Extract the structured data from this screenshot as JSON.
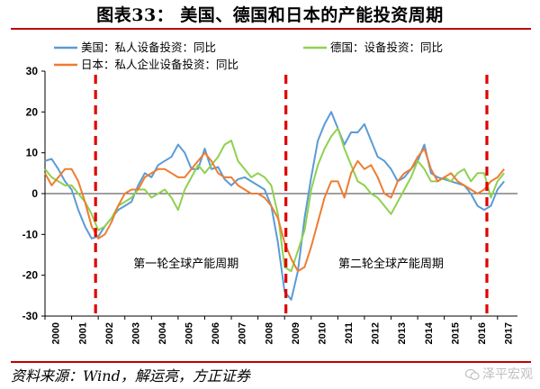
{
  "title": "图表33：  美国、德国和日本的产能投资周期",
  "source": "资料来源：Wind，解运亮，方正证券",
  "watermark": "泽平宏观",
  "colors": {
    "us": "#5b9bd5",
    "germany": "#8fd14f",
    "japan": "#ed7d31",
    "cycle_marker": "#e00000",
    "accent": "#c00000"
  },
  "chart_data": {
    "type": "line",
    "title": "",
    "xlabel": "",
    "ylabel": "",
    "ylim": [
      -30,
      30
    ],
    "yticks": [
      30,
      20,
      10,
      0,
      -10,
      -20,
      -30
    ],
    "xlim": [
      2000,
      2017.75
    ],
    "xticks": [
      "2000",
      "2001",
      "2002",
      "2003",
      "2004",
      "2005",
      "2006",
      "2007",
      "2008",
      "2009",
      "2010",
      "2011",
      "2012",
      "2013",
      "2014",
      "2015",
      "2016",
      "2017"
    ],
    "legend_position": "top",
    "grid": false,
    "series": [
      {
        "name": "美国：私人设备投资：同比",
        "color": "#5b9bd5",
        "points": [
          [
            2000.0,
            8
          ],
          [
            2000.25,
            8.5
          ],
          [
            2000.5,
            6
          ],
          [
            2000.75,
            3
          ],
          [
            2001.0,
            1
          ],
          [
            2001.25,
            -4
          ],
          [
            2001.5,
            -8
          ],
          [
            2001.75,
            -11
          ],
          [
            2002.0,
            -10.5
          ],
          [
            2002.25,
            -8
          ],
          [
            2002.5,
            -6
          ],
          [
            2002.75,
            -4
          ],
          [
            2003.0,
            -3
          ],
          [
            2003.25,
            -2
          ],
          [
            2003.5,
            2
          ],
          [
            2003.75,
            5
          ],
          [
            2004.0,
            4
          ],
          [
            2004.25,
            7
          ],
          [
            2004.5,
            8
          ],
          [
            2004.75,
            9
          ],
          [
            2005.0,
            12
          ],
          [
            2005.25,
            10
          ],
          [
            2005.5,
            6
          ],
          [
            2005.75,
            6
          ],
          [
            2006.0,
            11
          ],
          [
            2006.25,
            6
          ],
          [
            2006.5,
            6.5
          ],
          [
            2006.75,
            3.5
          ],
          [
            2007.0,
            2
          ],
          [
            2007.25,
            3.5
          ],
          [
            2007.5,
            4
          ],
          [
            2007.75,
            3
          ],
          [
            2008.0,
            2
          ],
          [
            2008.25,
            1
          ],
          [
            2008.5,
            -3
          ],
          [
            2008.75,
            -12
          ],
          [
            2009.0,
            -24
          ],
          [
            2009.25,
            -26
          ],
          [
            2009.5,
            -19
          ],
          [
            2009.75,
            -6
          ],
          [
            2010.0,
            4
          ],
          [
            2010.25,
            13
          ],
          [
            2010.5,
            17
          ],
          [
            2010.75,
            20
          ],
          [
            2011.0,
            16
          ],
          [
            2011.25,
            12
          ],
          [
            2011.5,
            15
          ],
          [
            2011.75,
            15
          ],
          [
            2012.0,
            17
          ],
          [
            2012.25,
            13
          ],
          [
            2012.5,
            9
          ],
          [
            2012.75,
            8
          ],
          [
            2013.0,
            6
          ],
          [
            2013.25,
            3
          ],
          [
            2013.5,
            4
          ],
          [
            2013.75,
            6
          ],
          [
            2014.0,
            8
          ],
          [
            2014.25,
            12
          ],
          [
            2014.5,
            5
          ],
          [
            2014.75,
            4
          ],
          [
            2015.0,
            3.5
          ],
          [
            2015.25,
            3
          ],
          [
            2015.5,
            2.5
          ],
          [
            2015.75,
            2
          ],
          [
            2016.0,
            0
          ],
          [
            2016.25,
            -3
          ],
          [
            2016.5,
            -4
          ],
          [
            2016.75,
            -3
          ],
          [
            2017.0,
            1
          ],
          [
            2017.25,
            3
          ]
        ]
      },
      {
        "name": "德国：设备投资：同比",
        "color": "#8fd14f",
        "points": [
          [
            2000.0,
            6
          ],
          [
            2000.25,
            4
          ],
          [
            2000.5,
            3
          ],
          [
            2000.75,
            2
          ],
          [
            2001.0,
            2
          ],
          [
            2001.25,
            0
          ],
          [
            2001.5,
            -2
          ],
          [
            2001.75,
            -5
          ],
          [
            2002.0,
            -9
          ],
          [
            2002.25,
            -8
          ],
          [
            2002.5,
            -6
          ],
          [
            2002.75,
            -3
          ],
          [
            2003.0,
            -2
          ],
          [
            2003.25,
            -1
          ],
          [
            2003.5,
            1
          ],
          [
            2003.75,
            1
          ],
          [
            2004.0,
            -1
          ],
          [
            2004.25,
            0
          ],
          [
            2004.5,
            1
          ],
          [
            2004.75,
            -1
          ],
          [
            2005.0,
            -4
          ],
          [
            2005.25,
            1
          ],
          [
            2005.5,
            4
          ],
          [
            2005.75,
            7
          ],
          [
            2006.0,
            5
          ],
          [
            2006.25,
            7
          ],
          [
            2006.5,
            9
          ],
          [
            2006.75,
            12
          ],
          [
            2007.0,
            13
          ],
          [
            2007.25,
            8
          ],
          [
            2007.5,
            6
          ],
          [
            2007.75,
            4
          ],
          [
            2008.0,
            5
          ],
          [
            2008.25,
            4
          ],
          [
            2008.5,
            2
          ],
          [
            2008.75,
            -5
          ],
          [
            2009.0,
            -18
          ],
          [
            2009.25,
            -19
          ],
          [
            2009.5,
            -14
          ],
          [
            2009.75,
            -9
          ],
          [
            2010.0,
            1
          ],
          [
            2010.25,
            7
          ],
          [
            2010.5,
            11
          ],
          [
            2010.75,
            14
          ],
          [
            2011.0,
            16
          ],
          [
            2011.25,
            11
          ],
          [
            2011.5,
            7
          ],
          [
            2011.75,
            3
          ],
          [
            2012.0,
            2
          ],
          [
            2012.25,
            0
          ],
          [
            2012.5,
            -1
          ],
          [
            2012.75,
            -3
          ],
          [
            2013.0,
            -5
          ],
          [
            2013.25,
            -2
          ],
          [
            2013.5,
            1
          ],
          [
            2013.75,
            4
          ],
          [
            2014.0,
            8
          ],
          [
            2014.25,
            6
          ],
          [
            2014.5,
            3
          ],
          [
            2014.75,
            3
          ],
          [
            2015.0,
            4
          ],
          [
            2015.25,
            3
          ],
          [
            2015.5,
            5
          ],
          [
            2015.75,
            6
          ],
          [
            2016.0,
            3
          ],
          [
            2016.25,
            5
          ],
          [
            2016.5,
            5
          ],
          [
            2016.75,
            -1
          ],
          [
            2017.0,
            3
          ],
          [
            2017.25,
            5
          ]
        ]
      },
      {
        "name": "日本：私人企业设备投资：同比",
        "color": "#ed7d31",
        "points": [
          [
            2000.0,
            5
          ],
          [
            2000.25,
            2
          ],
          [
            2000.5,
            4
          ],
          [
            2000.75,
            6
          ],
          [
            2001.0,
            6
          ],
          [
            2001.25,
            3
          ],
          [
            2001.5,
            -2
          ],
          [
            2001.75,
            -8
          ],
          [
            2002.0,
            -11
          ],
          [
            2002.25,
            -10
          ],
          [
            2002.5,
            -7
          ],
          [
            2002.75,
            -3
          ],
          [
            2003.0,
            0
          ],
          [
            2003.25,
            1
          ],
          [
            2003.5,
            1
          ],
          [
            2003.75,
            4
          ],
          [
            2004.0,
            5
          ],
          [
            2004.25,
            6
          ],
          [
            2004.5,
            6
          ],
          [
            2004.75,
            5
          ],
          [
            2005.0,
            4
          ],
          [
            2005.25,
            4
          ],
          [
            2005.5,
            6
          ],
          [
            2005.75,
            8
          ],
          [
            2006.0,
            10
          ],
          [
            2006.25,
            8
          ],
          [
            2006.5,
            5
          ],
          [
            2006.75,
            4
          ],
          [
            2007.0,
            4
          ],
          [
            2007.25,
            2
          ],
          [
            2007.5,
            1
          ],
          [
            2007.75,
            0
          ],
          [
            2008.0,
            0
          ],
          [
            2008.25,
            -1
          ],
          [
            2008.5,
            -3
          ],
          [
            2008.75,
            -6
          ],
          [
            2009.0,
            -12
          ],
          [
            2009.25,
            -16
          ],
          [
            2009.5,
            -19
          ],
          [
            2009.75,
            -18
          ],
          [
            2010.0,
            -13
          ],
          [
            2010.25,
            -7
          ],
          [
            2010.5,
            -1
          ],
          [
            2010.75,
            3
          ],
          [
            2011.0,
            3
          ],
          [
            2011.25,
            -1
          ],
          [
            2011.5,
            5
          ],
          [
            2011.75,
            8
          ],
          [
            2012.0,
            6
          ],
          [
            2012.25,
            7
          ],
          [
            2012.5,
            4
          ],
          [
            2012.75,
            0
          ],
          [
            2013.0,
            -1
          ],
          [
            2013.25,
            3
          ],
          [
            2013.5,
            5
          ],
          [
            2013.75,
            6
          ],
          [
            2014.0,
            9
          ],
          [
            2014.25,
            11
          ],
          [
            2014.5,
            6
          ],
          [
            2014.75,
            3
          ],
          [
            2015.0,
            4
          ],
          [
            2015.25,
            5
          ],
          [
            2015.5,
            3
          ],
          [
            2015.75,
            2
          ],
          [
            2016.0,
            1
          ],
          [
            2016.25,
            0
          ],
          [
            2016.5,
            1
          ],
          [
            2016.75,
            3
          ],
          [
            2017.0,
            4
          ],
          [
            2017.25,
            6
          ]
        ]
      }
    ],
    "cycle_markers": [
      2001.9,
      2009.05,
      2016.6
    ],
    "annotations": [
      {
        "text": "第一轮全球产能周期",
        "x": 2005.3,
        "y": -17
      },
      {
        "text": "第二轮全球产能周期",
        "x": 2013.0,
        "y": -17
      }
    ]
  }
}
